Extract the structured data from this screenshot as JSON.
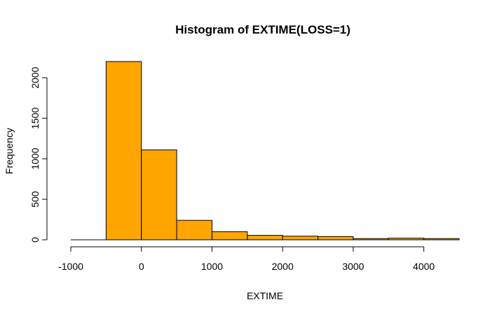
{
  "chart_data": {
    "type": "bar",
    "title": "Histogram of EXTIME(LOSS=1)",
    "xlabel": "EXTIME",
    "ylabel": "Frequency",
    "bin_edges": [
      -500,
      0,
      500,
      1000,
      1500,
      2000,
      2500,
      3000,
      3500,
      4000,
      4500
    ],
    "values": [
      2200,
      1110,
      240,
      100,
      55,
      45,
      40,
      15,
      20,
      15
    ],
    "xlim": [
      -1000,
      4500
    ],
    "ylim": [
      0,
      2200
    ],
    "x_ticks": [
      -1000,
      0,
      1000,
      2000,
      3000,
      4000
    ],
    "y_ticks": [
      0,
      500,
      1000,
      1500,
      2000
    ],
    "x_tick_labels": [
      "-1000",
      "0",
      "1000",
      "2000",
      "3000",
      "4000"
    ],
    "y_tick_labels": [
      "0",
      "500",
      "1000",
      "1500",
      "2000"
    ],
    "bar_color": "#FFA500",
    "grid": false
  }
}
